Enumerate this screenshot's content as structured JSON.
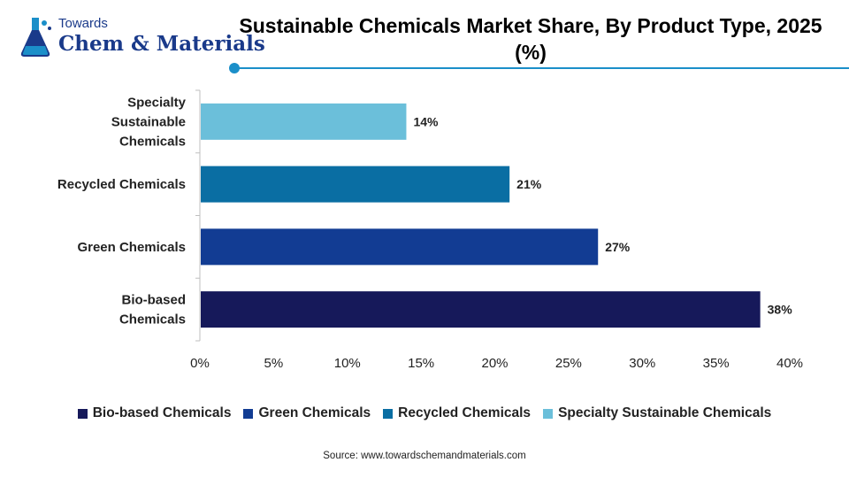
{
  "brand": {
    "small_text": "Towards",
    "name_text": "Chem & Materials"
  },
  "title": "Sustainable Chemicals Market Share, By Product Type, 2025 (%)",
  "source": "Source: www.towardschemandmaterials.com",
  "colors": {
    "accent": "#1b8fc9",
    "brand": "#1a3a8a"
  },
  "chart_data": {
    "type": "bar",
    "orientation": "horizontal",
    "title": "Sustainable Chemicals Market Share, By Product Type, 2025 (%)",
    "categories": [
      "Bio-based Chemicals",
      "Green Chemicals",
      "Recycled Chemicals",
      "Specialty Sustainable Chemicals"
    ],
    "category_labels": [
      [
        "Bio-based",
        "Chemicals"
      ],
      [
        "Green Chemicals"
      ],
      [
        "Recycled Chemicals"
      ],
      [
        "Specialty",
        "Sustainable",
        "Chemicals"
      ]
    ],
    "values": [
      38,
      27,
      21,
      14
    ],
    "value_labels": [
      "38%",
      "27%",
      "21%",
      "14%"
    ],
    "colors": [
      "#16195a",
      "#123c93",
      "#0a6ea3",
      "#6bbfda"
    ],
    "xlim": [
      0,
      40
    ],
    "xticks": [
      0,
      5,
      10,
      15,
      20,
      25,
      30,
      35,
      40
    ],
    "xtick_labels": [
      "0%",
      "5%",
      "10%",
      "15%",
      "20%",
      "25%",
      "30%",
      "35%",
      "40%"
    ],
    "xlabel": "",
    "ylabel": "",
    "grid": false,
    "legend": {
      "placement": "bottom",
      "entries": [
        "Bio-based Chemicals",
        "Green Chemicals",
        "Recycled Chemicals",
        "Specialty Sustainable Chemicals"
      ]
    }
  }
}
